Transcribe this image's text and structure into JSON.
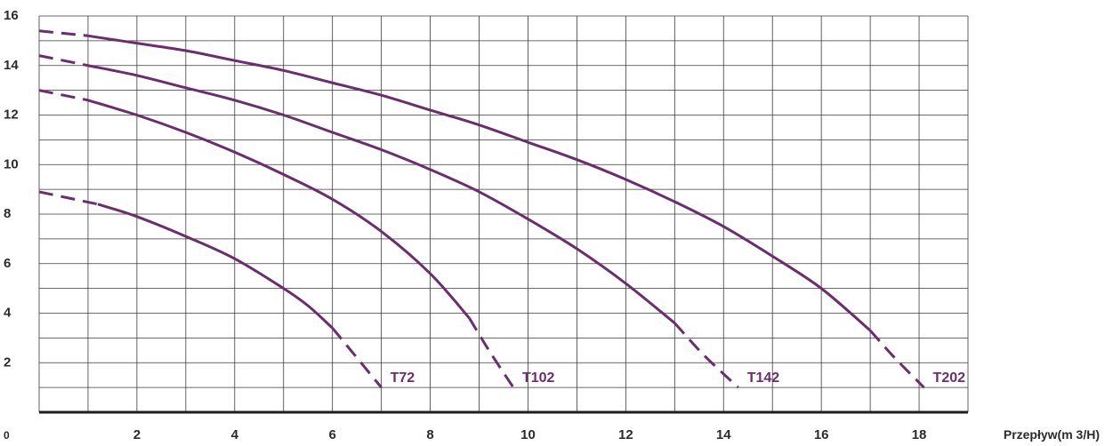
{
  "chart_data": {
    "type": "line",
    "xlabel": "Przepływ(m 3/H)",
    "ylabel": "",
    "xlim": [
      0,
      19
    ],
    "ylim": [
      0,
      16
    ],
    "x_ticks": [
      2,
      4,
      6,
      8,
      10,
      12,
      14,
      16,
      18
    ],
    "y_ticks": [
      2,
      4,
      6,
      8,
      10,
      12,
      14,
      16
    ],
    "origin_label": "0",
    "grid": true,
    "line_style": "solid with dashed ends",
    "series_color": "#6b2d6e",
    "series": [
      {
        "name": "T72",
        "x": [
          0,
          1.2,
          2,
          3,
          4,
          5,
          5.5,
          6,
          6.5,
          7
        ],
        "y": [
          8.9,
          8.4,
          7.9,
          7.1,
          6.2,
          5.0,
          4.3,
          3.4,
          2.2,
          1.0
        ]
      },
      {
        "name": "T102",
        "x": [
          0,
          1,
          2,
          3,
          4,
          5,
          6,
          7,
          8,
          8.8,
          9.2,
          9.7
        ],
        "y": [
          13.0,
          12.6,
          12.0,
          11.3,
          10.5,
          9.6,
          8.6,
          7.3,
          5.6,
          3.8,
          2.5,
          1.0
        ]
      },
      {
        "name": "T142",
        "x": [
          0,
          1,
          2,
          3,
          4,
          5,
          6,
          7,
          8,
          9,
          10,
          11,
          12,
          13,
          13.6,
          14.3
        ],
        "y": [
          14.4,
          14.0,
          13.6,
          13.1,
          12.6,
          12.0,
          11.3,
          10.6,
          9.8,
          8.9,
          7.8,
          6.6,
          5.2,
          3.6,
          2.3,
          1.0
        ]
      },
      {
        "name": "T202",
        "x": [
          0,
          1,
          2,
          3,
          4,
          5,
          6,
          7,
          8,
          9,
          10,
          11,
          12,
          13,
          14,
          15,
          16,
          17,
          17.5,
          18.1
        ],
        "y": [
          15.4,
          15.2,
          14.9,
          14.6,
          14.2,
          13.8,
          13.3,
          12.8,
          12.2,
          11.6,
          10.9,
          10.2,
          9.4,
          8.5,
          7.5,
          6.3,
          5.0,
          3.3,
          2.2,
          1.0
        ]
      }
    ]
  }
}
